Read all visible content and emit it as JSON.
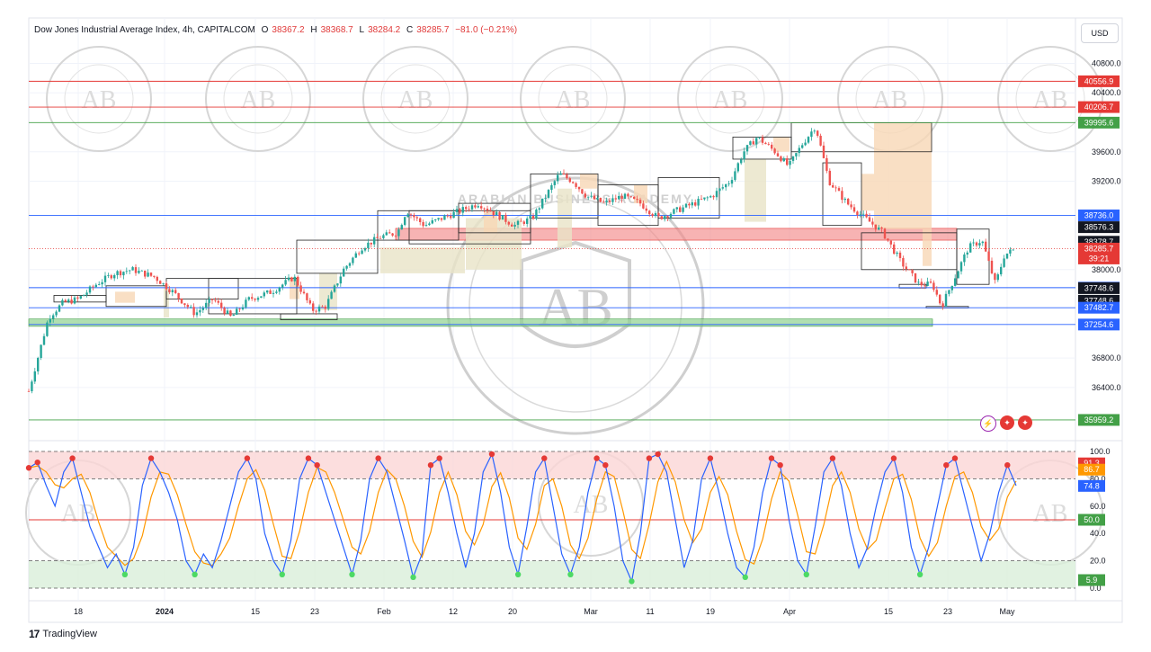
{
  "header": {
    "symbol": "Dow Jones Industrial Average Index, 4h, CAPITALCOM",
    "open_label": "O",
    "open": "38367.2",
    "high_label": "H",
    "high": "38368.7",
    "low_label": "L",
    "low": "38284.2",
    "close_label": "C",
    "close": "38285.7",
    "change": "−81.0 (−0.21%)"
  },
  "currency": "USD",
  "footer": {
    "brand": "TradingView"
  },
  "watermark": {
    "initials": "AB",
    "ring_text": "ARABIAN BUSINESS ACADEMY"
  },
  "icons": [
    "lightning-icon",
    "us-flag-icon",
    "us-flag-icon"
  ],
  "colors": {
    "up": "#26a69a",
    "down": "#ef5350",
    "red_line": "#e53935",
    "blue_line": "#2962ff",
    "green_line": "#43a047",
    "stoch_k": "#2962ff",
    "stoch_d": "#ff9800"
  },
  "chart_data": [
    {
      "type": "candlestick",
      "title": "Dow Jones Industrial Average Index, 4h, CAPITALCOM",
      "y_ticks": [
        "40800.0",
        "40400.0",
        "39600.0",
        "39200.0",
        "38000.0",
        "36800.0",
        "36400.0"
      ],
      "x_ticks": [
        "18",
        "2024",
        "15",
        "23",
        "Feb",
        "12",
        "20",
        "Mar",
        "11",
        "19",
        "Apr",
        "15",
        "23",
        "May"
      ],
      "ylim": [
        35800,
        41050
      ],
      "close_path": [
        [
          0,
          36350
        ],
        [
          10,
          36800
        ],
        [
          22,
          37350
        ],
        [
          38,
          37550
        ],
        [
          55,
          37600
        ],
        [
          75,
          37800
        ],
        [
          95,
          37950
        ],
        [
          115,
          38000
        ],
        [
          140,
          37900
        ],
        [
          160,
          37700
        ],
        [
          185,
          37400
        ],
        [
          205,
          37600
        ],
        [
          225,
          37350
        ],
        [
          245,
          37600
        ],
        [
          270,
          37700
        ],
        [
          295,
          37900
        ],
        [
          315,
          37450
        ],
        [
          330,
          37500
        ],
        [
          350,
          38000
        ],
        [
          370,
          38300
        ],
        [
          392,
          38450
        ],
        [
          410,
          38500
        ],
        [
          420,
          38800
        ],
        [
          440,
          38600
        ],
        [
          460,
          38700
        ],
        [
          480,
          38800
        ],
        [
          500,
          38900
        ],
        [
          520,
          38750
        ],
        [
          540,
          38600
        ],
        [
          560,
          38700
        ],
        [
          575,
          39000
        ],
        [
          590,
          39300
        ],
        [
          605,
          39200
        ],
        [
          620,
          39000
        ],
        [
          640,
          38900
        ],
        [
          660,
          39000
        ],
        [
          680,
          38900
        ],
        [
          700,
          38700
        ],
        [
          720,
          38800
        ],
        [
          740,
          38900
        ],
        [
          760,
          39000
        ],
        [
          780,
          39200
        ],
        [
          795,
          39600
        ],
        [
          810,
          39800
        ],
        [
          830,
          39600
        ],
        [
          845,
          39400
        ],
        [
          860,
          39700
        ],
        [
          875,
          39950
        ],
        [
          890,
          39200
        ],
        [
          910,
          38900
        ],
        [
          930,
          38700
        ],
        [
          950,
          38500
        ],
        [
          970,
          38100
        ],
        [
          990,
          37800
        ],
        [
          1005,
          37800
        ],
        [
          1015,
          37500
        ],
        [
          1030,
          37900
        ],
        [
          1045,
          38300
        ],
        [
          1060,
          38400
        ],
        [
          1075,
          37800
        ],
        [
          1085,
          38200
        ],
        [
          1098,
          38285
        ]
      ],
      "levels": [
        {
          "value": 40556.9,
          "label": "40556.9",
          "style": "red"
        },
        {
          "value": 40206.7,
          "label": "40206.7",
          "style": "red"
        },
        {
          "value": 39995.6,
          "label": "39995.6",
          "style": "green"
        },
        {
          "value": 38736.0,
          "label": "38736.0",
          "style": "blue"
        },
        {
          "value": 38576.3,
          "label": "38576.3",
          "style": "black"
        },
        {
          "value": 38378.7,
          "label": "38378.7",
          "style": "black"
        },
        {
          "value": 38285.7,
          "label": "38285.7",
          "style": "current",
          "sub": "39:21"
        },
        {
          "value": 37755.0,
          "label": "37755.0",
          "style": "blue"
        },
        {
          "value": 37748.6,
          "label": "37748.6",
          "style": "black"
        },
        {
          "value": 37748.6,
          "label": "37748.6",
          "style": "black"
        },
        {
          "value": 37482.7,
          "label": "37482.7",
          "style": "blue"
        },
        {
          "value": 37254.6,
          "label": "37254.6",
          "style": "blue"
        },
        {
          "value": 35959.2,
          "label": "35959.2",
          "style": "green"
        }
      ],
      "zones": [
        {
          "name": "resistance-zone",
          "from": 38560,
          "to": 38400,
          "color": "red"
        },
        {
          "name": "support-zone",
          "from": 37330,
          "to": 37230,
          "color": "green"
        }
      ]
    },
    {
      "type": "line",
      "title": "",
      "y_ticks": [
        "100.0",
        "80.0",
        "60.0",
        "40.0",
        "20.0",
        "0.0"
      ],
      "ylim": [
        0,
        100
      ],
      "overbought": 80,
      "oversold": 20,
      "mid": 50,
      "badges": [
        {
          "value": 91.3,
          "label": "91.3",
          "color": "#e53935"
        },
        {
          "value": 86.7,
          "label": "86.7",
          "color": "#ff9800"
        },
        {
          "value": 74.8,
          "label": "74.8",
          "color": "#2962ff"
        },
        {
          "value": 50.0,
          "label": "50.0",
          "color": "#43a047"
        },
        {
          "value": 5.9,
          "label": "5.9",
          "color": "#43a047"
        }
      ],
      "k_values": [
        88,
        92,
        75,
        60,
        85,
        95,
        70,
        45,
        30,
        15,
        25,
        10,
        30,
        75,
        95,
        85,
        70,
        50,
        20,
        10,
        25,
        15,
        35,
        60,
        85,
        95,
        80,
        40,
        20,
        10,
        35,
        80,
        95,
        90,
        70,
        50,
        30,
        10,
        35,
        80,
        95,
        85,
        60,
        35,
        8,
        25,
        90,
        95,
        70,
        40,
        15,
        40,
        85,
        98,
        70,
        30,
        10,
        45,
        85,
        95,
        60,
        25,
        10,
        30,
        70,
        95,
        90,
        60,
        20,
        5,
        40,
        95,
        98,
        85,
        50,
        15,
        35,
        80,
        95,
        70,
        40,
        15,
        8,
        30,
        70,
        95,
        90,
        50,
        20,
        10,
        45,
        85,
        95,
        75,
        40,
        15,
        30,
        60,
        85,
        95,
        70,
        30,
        10,
        30,
        60,
        90,
        95,
        70,
        45,
        20,
        40,
        70,
        90,
        75
      ]
    }
  ]
}
